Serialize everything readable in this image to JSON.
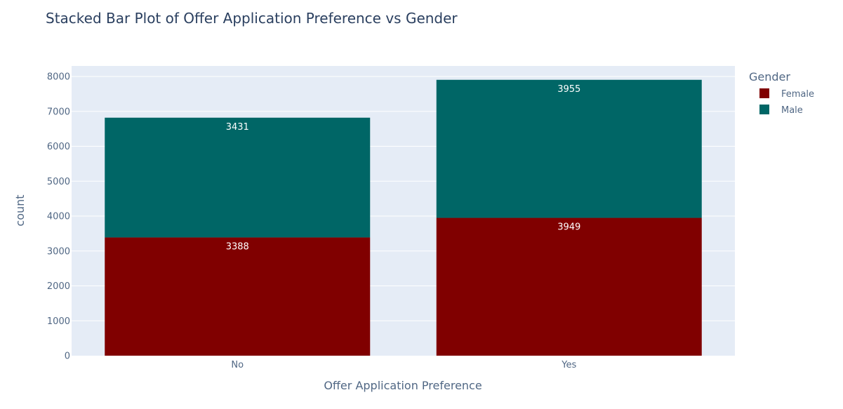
{
  "chart_data": {
    "type": "bar",
    "barmode": "stack",
    "title": "Stacked Bar Plot of Offer Application Preference vs Gender",
    "xlabel": "Offer Application Preference",
    "ylabel": "count",
    "categories": [
      "No",
      "Yes"
    ],
    "series": [
      {
        "name": "Female",
        "values": [
          3388,
          3949
        ],
        "color": "#800000"
      },
      {
        "name": "Male",
        "values": [
          3431,
          3955
        ],
        "color": "#006666"
      }
    ],
    "ylim": [
      0,
      8000
    ],
    "yticks": [
      0,
      1000,
      2000,
      3000,
      4000,
      5000,
      6000,
      7000,
      8000
    ],
    "grid": true,
    "legend": {
      "title": "Gender",
      "placement": "top-right"
    },
    "plot_background": "#e5ecf6"
  }
}
